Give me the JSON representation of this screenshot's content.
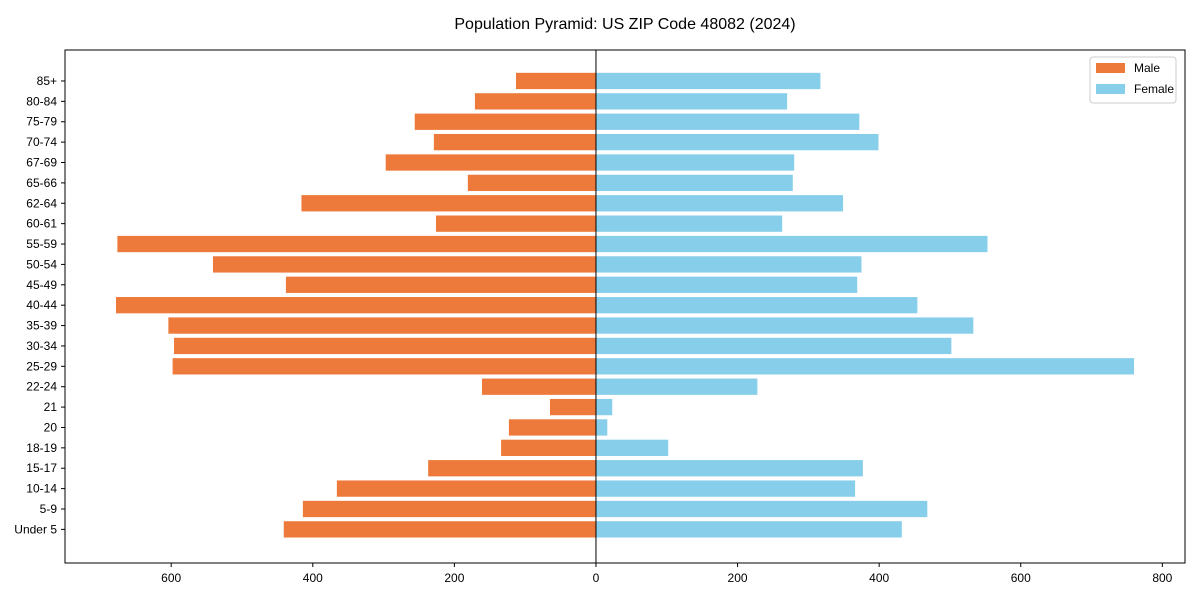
{
  "chart_data": {
    "type": "bar",
    "orientation": "horizontal",
    "title": "Population Pyramid: US ZIP Code 48082 (2024)",
    "xlabel": "",
    "ylabel": "",
    "xlim": [
      -750,
      832
    ],
    "xticks": [
      -600,
      -400,
      -200,
      0,
      200,
      400,
      600,
      800
    ],
    "xtick_labels": [
      "600",
      "400",
      "200",
      "0",
      "200",
      "400",
      "600",
      "800"
    ],
    "grid": false,
    "legend_position": "top-right",
    "categories": [
      "Under 5",
      "5-9",
      "10-14",
      "15-17",
      "18-19",
      "20",
      "21",
      "22-24",
      "25-29",
      "30-34",
      "35-39",
      "40-44",
      "45-49",
      "50-54",
      "55-59",
      "60-61",
      "62-64",
      "65-66",
      "67-69",
      "70-74",
      "75-79",
      "80-84",
      "85+"
    ],
    "series": [
      {
        "name": "Male",
        "color": "#ED7A3A",
        "values": [
          441,
          414,
          366,
          237,
          134,
          123,
          65,
          161,
          598,
          596,
          604,
          678,
          438,
          541,
          676,
          226,
          416,
          181,
          297,
          229,
          256,
          171,
          113
        ]
      },
      {
        "name": "Female",
        "color": "#87CEEB",
        "values": [
          432,
          468,
          366,
          377,
          102,
          16,
          23,
          228,
          760,
          502,
          533,
          454,
          369,
          375,
          553,
          263,
          349,
          278,
          280,
          399,
          372,
          270,
          317
        ]
      }
    ]
  }
}
